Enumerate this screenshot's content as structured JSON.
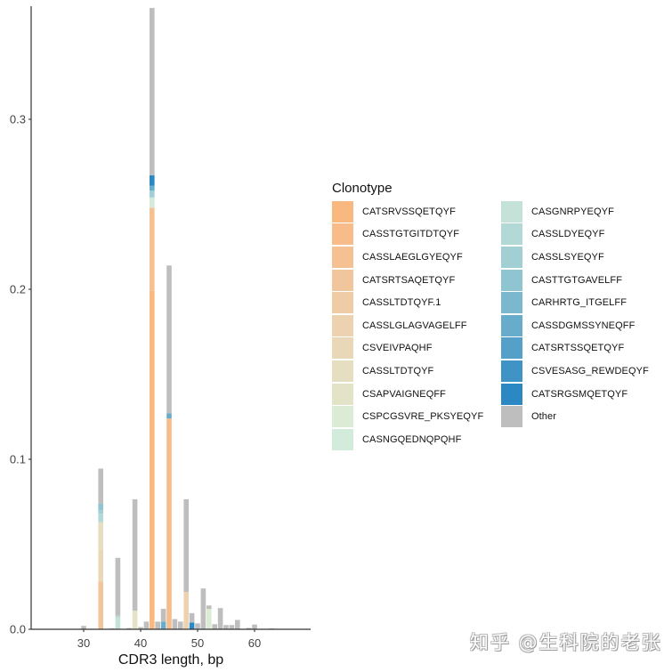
{
  "chart_data": {
    "type": "bar",
    "stacked": true,
    "title": "",
    "xlabel": "CDR3 length, bp",
    "ylabel": "",
    "xlim": [
      21,
      69
    ],
    "ylim": [
      0,
      0.365
    ],
    "x_ticks": [
      30,
      40,
      50,
      60
    ],
    "y_ticks": [
      0.0,
      0.1,
      0.2,
      0.3
    ],
    "y_tick_labels": [
      "0.0",
      "0.1",
      "0.2",
      "0.3"
    ],
    "grid": false,
    "legend_title": "Clonotype",
    "legend_position": "right",
    "series": [
      {
        "name": "CATSRVSSQETQYF",
        "color": "#F9B880"
      },
      {
        "name": "CASSTGTGITDTQYF",
        "color": "#F7BC8A"
      },
      {
        "name": "CASSLAEGLGYEQYF",
        "color": "#F5C193"
      },
      {
        "name": "CATSRTSAQETQYF",
        "color": "#F2C69D"
      },
      {
        "name": "CASSLTDTQYF.1",
        "color": "#EFCBA6"
      },
      {
        "name": "CASSLGLAGVAGELFF",
        "color": "#ECD2AF"
      },
      {
        "name": "CSVEIVPAQHF",
        "color": "#E9D8B7"
      },
      {
        "name": "CASSLTDTQYF",
        "color": "#E6DEC0"
      },
      {
        "name": "CSAPVAIGNEQFF",
        "color": "#E3E3C8"
      },
      {
        "name": "CSPCGSVRE_PKSYEQYF",
        "color": "#DCEBD3"
      },
      {
        "name": "CASNGQEDNQPQHF",
        "color": "#D3EBDA"
      },
      {
        "name": "CASGNRPYEQYF",
        "color": "#C4E2D8"
      },
      {
        "name": "CASSLDYEQYF",
        "color": "#B3D9D6"
      },
      {
        "name": "CASSLSYEQYF",
        "color": "#A2CFD4"
      },
      {
        "name": "CASTTGTGAVELFF",
        "color": "#8FC4D1"
      },
      {
        "name": "CARHRTG_ITGELFF",
        "color": "#7BB8CF"
      },
      {
        "name": "CASSDGMSSYNEQFF",
        "color": "#68ACCC"
      },
      {
        "name": "CATSRTSSQETQYF",
        "color": "#54A0C9"
      },
      {
        "name": "CSVESASG_REWDEQYF",
        "color": "#4094C5"
      },
      {
        "name": "CATSRGSMQETQYF",
        "color": "#2C88C2"
      },
      {
        "name": "Other",
        "color": "#BEBEBE"
      }
    ],
    "bars": [
      {
        "x": 30,
        "segments": [
          {
            "s": "Other",
            "v": 0.002
          }
        ]
      },
      {
        "x": 33,
        "segments": [
          {
            "s": "CATSRTSAQETQYF",
            "v": 0.028
          },
          {
            "s": "CSVEIVPAQHF",
            "v": 0.019
          },
          {
            "s": "CASSLTDTQYF",
            "v": 0.016
          },
          {
            "s": "CASSLDYEQYF",
            "v": 0.005
          },
          {
            "s": "CASSLSYEQYF",
            "v": 0.002
          },
          {
            "s": "CASTTGTGAVELFF",
            "v": 0.004
          },
          {
            "s": "Other",
            "v": 0.0205
          }
        ]
      },
      {
        "x": 35,
        "segments": [
          {
            "s": "Other",
            "v": 0.0005
          }
        ]
      },
      {
        "x": 36,
        "segments": [
          {
            "s": "CASGNRPYEQYF",
            "v": 0.007
          },
          {
            "s": "CASSLDYEQYF",
            "v": 0.001
          },
          {
            "s": "Other",
            "v": 0.034
          }
        ]
      },
      {
        "x": 38,
        "segments": [
          {
            "s": "Other",
            "v": 0.0007
          }
        ]
      },
      {
        "x": 39,
        "segments": [
          {
            "s": "CSAPVAIGNEQFF",
            "v": 0.011
          },
          {
            "s": "Other",
            "v": 0.0655
          }
        ]
      },
      {
        "x": 40,
        "segments": [
          {
            "s": "Other",
            "v": 0.0013
          }
        ]
      },
      {
        "x": 41,
        "segments": [
          {
            "s": "Other",
            "v": 0.0045
          }
        ]
      },
      {
        "x": 42,
        "segments": [
          {
            "s": "CATSRVSSQETQYF",
            "v": 0.199
          },
          {
            "s": "CASSLAEGLGYEQYF",
            "v": 0.049
          },
          {
            "s": "CASNGQEDNQPQHF",
            "v": 0.006
          },
          {
            "s": "CASSLSYEQYF",
            "v": 0.004
          },
          {
            "s": "CASSDGMSSYNEQFF",
            "v": 0.003
          },
          {
            "s": "CATSRGSMQETQYF",
            "v": 0.006
          },
          {
            "s": "Other",
            "v": 0.0985
          }
        ]
      },
      {
        "x": 43,
        "segments": [
          {
            "s": "Other",
            "v": 0.0045
          }
        ]
      },
      {
        "x": 44,
        "segments": [
          {
            "s": "CASSDGMSSYNEQFF",
            "v": 0.0045
          },
          {
            "s": "Other",
            "v": 0.0075
          }
        ]
      },
      {
        "x": 45,
        "segments": [
          {
            "s": "CASSTGTGITDTQYF",
            "v": 0.124
          },
          {
            "s": "CASSDGMSSYNEQFF",
            "v": 0.003
          },
          {
            "s": "Other",
            "v": 0.087
          }
        ]
      },
      {
        "x": 46,
        "segments": [
          {
            "s": "Other",
            "v": 0.006
          }
        ]
      },
      {
        "x": 47,
        "segments": [
          {
            "s": "Other",
            "v": 0.0045
          }
        ]
      },
      {
        "x": 48,
        "segments": [
          {
            "s": "CASSLGLAGVAGELFF",
            "v": 0.022
          },
          {
            "s": "Other",
            "v": 0.0545
          }
        ]
      },
      {
        "x": 49,
        "segments": [
          {
            "s": "CATSRGSMQETQYF",
            "v": 0.004
          },
          {
            "s": "Other",
            "v": 0.0055
          }
        ]
      },
      {
        "x": 50,
        "segments": [
          {
            "s": "Other",
            "v": 0.0035
          }
        ]
      },
      {
        "x": 51,
        "segments": [
          {
            "s": "Other",
            "v": 0.024
          }
        ]
      },
      {
        "x": 52,
        "segments": [
          {
            "s": "CSPCGSVRE_PKSYEQYF",
            "v": 0.012
          },
          {
            "s": "Other",
            "v": 0.002
          }
        ]
      },
      {
        "x": 53,
        "segments": [
          {
            "s": "Other",
            "v": 0.003
          }
        ]
      },
      {
        "x": 54,
        "segments": [
          {
            "s": "Other",
            "v": 0.0125
          }
        ]
      },
      {
        "x": 55,
        "segments": [
          {
            "s": "Other",
            "v": 0.0025
          }
        ]
      },
      {
        "x": 56,
        "segments": [
          {
            "s": "Other",
            "v": 0.0025
          }
        ]
      },
      {
        "x": 57,
        "segments": [
          {
            "s": "Other",
            "v": 0.0055
          }
        ]
      },
      {
        "x": 59,
        "segments": [
          {
            "s": "Other",
            "v": 0.0008
          }
        ]
      },
      {
        "x": 60,
        "segments": [
          {
            "s": "Other",
            "v": 0.0028
          }
        ]
      },
      {
        "x": 63,
        "segments": [
          {
            "s": "Other",
            "v": 0.0005
          }
        ]
      }
    ]
  },
  "axes": {
    "x_title": "CDR3 length, bp",
    "axis_color": "#333333",
    "tick_label_color": "#444444"
  },
  "legend": {
    "title": "Clonotype",
    "columns": [
      [
        "CATSRVSSQETQYF",
        "CASSTGTGITDTQYF",
        "CASSLAEGLGYEQYF",
        "CATSRTSAQETQYF",
        "CASSLTDTQYF.1",
        "CASSLGLAGVAGELFF",
        "CSVEIVPAQHF",
        "CASSLTDTQYF",
        "CSAPVAIGNEQFF",
        "CSPCGSVRE_PKSYEQYF",
        "CASNGQEDNQPQHF"
      ],
      [
        "CASGNRPYEQYF",
        "CASSLDYEQYF",
        "CASSLSYEQYF",
        "CASTTGTGAVELFF",
        "CARHRTG_ITGELFF",
        "CASSDGMSSYNEQFF",
        "CATSRTSSQETQYF",
        "CSVESASG_REWDEQYF",
        "CATSRGSMQETQYF",
        "Other"
      ]
    ]
  },
  "watermark": {
    "text": "知乎 @生科院的老张"
  }
}
